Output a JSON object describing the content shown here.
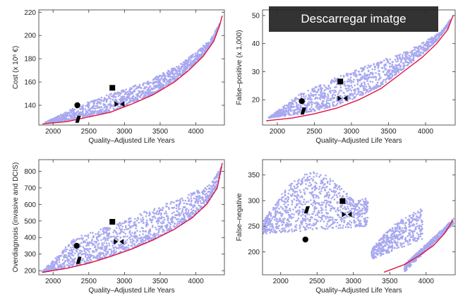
{
  "download_button": {
    "label": "Descarregar imatge"
  },
  "colors": {
    "scatter": "#a8a8f0",
    "frontier": "#e0103c",
    "marker": "#000000"
  },
  "chart_data": [
    {
      "type": "scatter",
      "title": "",
      "xlabel": "Quality–Adjusted Life Years",
      "ylabel": "Cost (x 10⁶ €)",
      "xlim": [
        1800,
        4400
      ],
      "ylim": [
        123,
        222
      ],
      "xticks": [
        2000,
        2500,
        3000,
        3500,
        4000
      ],
      "xtick_labels": [
        "2000",
        "2500",
        "3000",
        "3500",
        "4000"
      ],
      "yticks": [
        140,
        160,
        180,
        200,
        220
      ],
      "ytick_labels": [
        "140",
        "160",
        "180",
        "200",
        "220"
      ],
      "grid": false,
      "cloud": {
        "x_start": 1850,
        "x_end": 4380,
        "upper_edge": [
          [
            1850,
            124
          ],
          [
            2300,
            138
          ],
          [
            2800,
            150
          ],
          [
            3300,
            160
          ],
          [
            3800,
            176
          ],
          [
            4200,
            196
          ],
          [
            4380,
            215
          ]
        ]
      },
      "frontier": [
        [
          1850,
          124
        ],
        [
          2200,
          126
        ],
        [
          2500,
          130
        ],
        [
          2800,
          134
        ],
        [
          3100,
          141
        ],
        [
          3400,
          149
        ],
        [
          3700,
          160
        ],
        [
          3900,
          170
        ],
        [
          4100,
          182
        ],
        [
          4250,
          195
        ],
        [
          4330,
          208
        ],
        [
          4370,
          217
        ]
      ],
      "markers": [
        {
          "shape": "circle",
          "x": 2340,
          "y": 140
        },
        {
          "shape": "square",
          "x": 2830,
          "y": 155
        },
        {
          "shape": "parallelogram",
          "x": 2350,
          "y": 128
        },
        {
          "shape": "bowtie",
          "x": 2930,
          "y": 141
        }
      ]
    },
    {
      "type": "scatter",
      "title": "",
      "xlabel": "Quality–Adjusted Life Years",
      "ylabel": "False–positive (x 1,000)",
      "xlim": [
        1800,
        4400
      ],
      "ylim": [
        11,
        52
      ],
      "xticks": [
        2000,
        2500,
        3000,
        3500,
        4000
      ],
      "xtick_labels": [
        "2000",
        "2500",
        "3000",
        "3500",
        "4000"
      ],
      "yticks": [
        20,
        30,
        40,
        50
      ],
      "ytick_labels": [
        "20",
        "30",
        "40",
        "50"
      ],
      "grid": false,
      "cloud": {
        "x_start": 1850,
        "x_end": 4380,
        "upper_edge": [
          [
            1850,
            13
          ],
          [
            2300,
            22
          ],
          [
            2800,
            28
          ],
          [
            3300,
            33
          ],
          [
            3800,
            38
          ],
          [
            4200,
            44
          ],
          [
            4380,
            50
          ]
        ]
      },
      "frontier": [
        [
          1850,
          12.5
        ],
        [
          2200,
          13.5
        ],
        [
          2500,
          15
        ],
        [
          2800,
          17
        ],
        [
          3100,
          20
        ],
        [
          3400,
          24
        ],
        [
          3700,
          30
        ],
        [
          3950,
          35
        ],
        [
          4150,
          40
        ],
        [
          4300,
          45
        ],
        [
          4370,
          50
        ]
      ],
      "markers": [
        {
          "shape": "circle",
          "x": 2330,
          "y": 19.5
        },
        {
          "shape": "square",
          "x": 2850,
          "y": 26.5
        },
        {
          "shape": "parallelogram",
          "x": 2350,
          "y": 16
        },
        {
          "shape": "bowtie",
          "x": 2880,
          "y": 20.5
        }
      ]
    },
    {
      "type": "scatter",
      "title": "",
      "xlabel": "Quality–Adjusted Life Years",
      "ylabel": "Overdiagnosis (invasive and DCIS)",
      "xlim": [
        1800,
        4400
      ],
      "ylim": [
        175,
        870
      ],
      "xticks": [
        2000,
        2500,
        3000,
        3500,
        4000
      ],
      "xtick_labels": [
        "2000",
        "2500",
        "3000",
        "3500",
        "4000"
      ],
      "yticks": [
        200,
        300,
        400,
        500,
        600,
        700,
        800
      ],
      "ytick_labels": [
        "200",
        "300",
        "400",
        "500",
        "600",
        "700",
        "800"
      ],
      "grid": false,
      "cloud": {
        "x_start": 1850,
        "x_end": 4380,
        "upper_edge": [
          [
            1850,
            195
          ],
          [
            2300,
            400
          ],
          [
            2800,
            470
          ],
          [
            3300,
            560
          ],
          [
            3800,
            640
          ],
          [
            4200,
            720
          ],
          [
            4380,
            840
          ]
        ]
      },
      "frontier": [
        [
          1850,
          190
        ],
        [
          2200,
          215
        ],
        [
          2500,
          245
        ],
        [
          2800,
          285
        ],
        [
          3100,
          330
        ],
        [
          3400,
          385
        ],
        [
          3700,
          450
        ],
        [
          3950,
          520
        ],
        [
          4150,
          600
        ],
        [
          4300,
          700
        ],
        [
          4370,
          850
        ]
      ],
      "markers": [
        {
          "shape": "circle",
          "x": 2330,
          "y": 350
        },
        {
          "shape": "square",
          "x": 2830,
          "y": 495
        },
        {
          "shape": "parallelogram",
          "x": 2360,
          "y": 262
        },
        {
          "shape": "bowtie",
          "x": 2920,
          "y": 375
        }
      ]
    },
    {
      "type": "scatter",
      "title": "",
      "xlabel": "Quality–Adjusted Life Years",
      "ylabel": "False–negative",
      "xlim": [
        1750,
        4400
      ],
      "ylim": [
        155,
        380
      ],
      "xticks": [
        2000,
        2500,
        3000,
        3500,
        4000
      ],
      "xtick_labels": [
        "2000",
        "2500",
        "3000",
        "3500",
        "4000"
      ],
      "yticks": [
        200,
        250,
        300,
        350
      ],
      "ytick_labels": [
        "200",
        "250",
        "300",
        "350"
      ],
      "grid": false,
      "bands": [
        {
          "x_start": 1760,
          "x_end": 3200,
          "y_low_start": 235,
          "y_low_end": 250,
          "y_high_start": 260,
          "y_high_end": 305,
          "hump": 75
        },
        {
          "x_start": 3250,
          "x_end": 3950,
          "y_low_start": 185,
          "y_low_end": 225,
          "y_high_start": 205,
          "y_high_end": 290,
          "hump": 10
        },
        {
          "x_start": 3700,
          "x_end": 4380,
          "y_low_start": 160,
          "y_low_end": 255,
          "y_high_start": 175,
          "y_high_end": 265,
          "hump": 0
        }
      ],
      "frontier": [
        [
          3420,
          160
        ],
        [
          3700,
          175
        ],
        [
          3900,
          192
        ],
        [
          4100,
          212
        ],
        [
          4250,
          235
        ],
        [
          4370,
          262
        ]
      ],
      "markers": [
        {
          "shape": "circle",
          "x": 2340,
          "y": 224
        },
        {
          "shape": "square",
          "x": 2850,
          "y": 299
        },
        {
          "shape": "parallelogram",
          "x": 2360,
          "y": 282
        },
        {
          "shape": "bowtie",
          "x": 2910,
          "y": 273
        }
      ]
    }
  ]
}
